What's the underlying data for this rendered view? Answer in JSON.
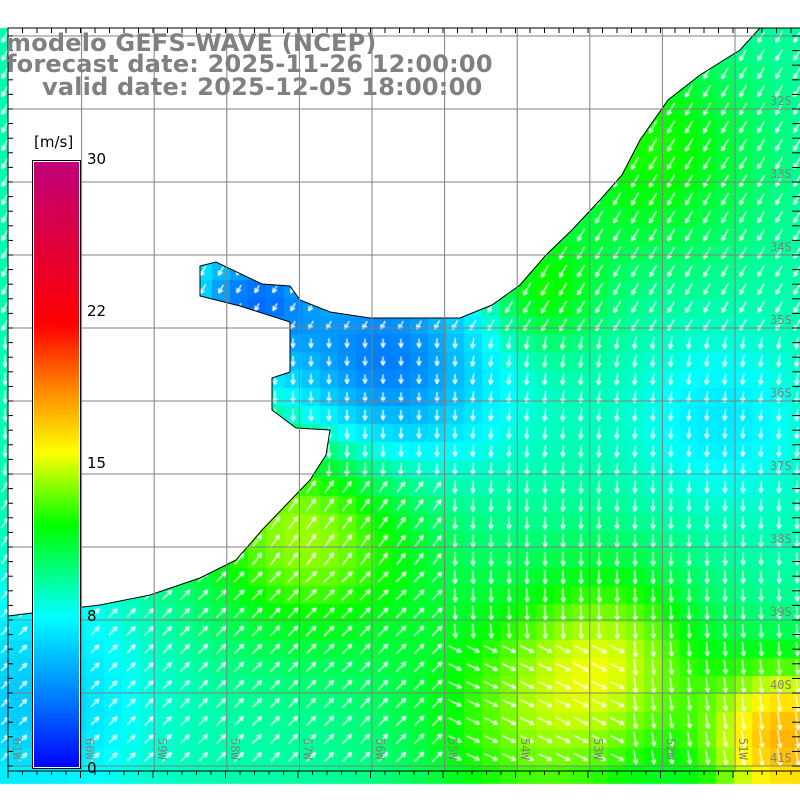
{
  "title": {
    "line1": "modelo GEFS-WAVE (NCEP)",
    "line2": "forecast date: 2025-11-26 12:00:00",
    "line3": "valid date: 2025-12-05 18:00:00"
  },
  "colorbar": {
    "units": "[m/s]",
    "ticks": [
      "30",
      "22",
      "15",
      "8",
      "0"
    ],
    "colors": [
      "#c0007a",
      "#ff0000",
      "#ffff00",
      "#00ff00",
      "#00ffff",
      "#0000ff"
    ]
  },
  "axes": {
    "lat_labels": [
      "32S",
      "33S",
      "34S",
      "35S",
      "36S",
      "37S",
      "38S",
      "39S",
      "40S",
      "41S"
    ],
    "lon_labels": [
      "61W",
      "60W",
      "59W",
      "58W",
      "57W",
      "56W",
      "55W",
      "54W",
      "53W",
      "52W",
      "51W"
    ]
  },
  "colors": {
    "land": "#ffffff",
    "grid": "#808080",
    "coast": "#000000",
    "arrow": "#ffffff"
  }
}
